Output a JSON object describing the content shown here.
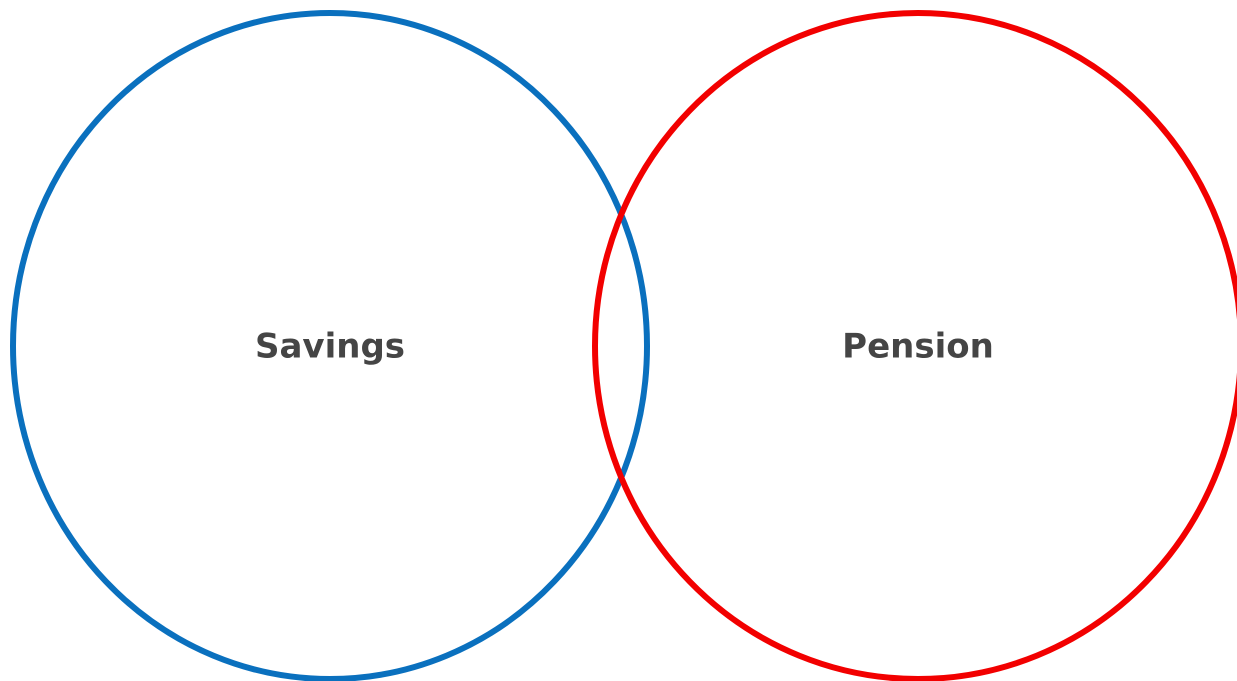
{
  "sets": [
    {
      "label": "Savings"
    },
    {
      "label": "Pension"
    }
  ]
}
